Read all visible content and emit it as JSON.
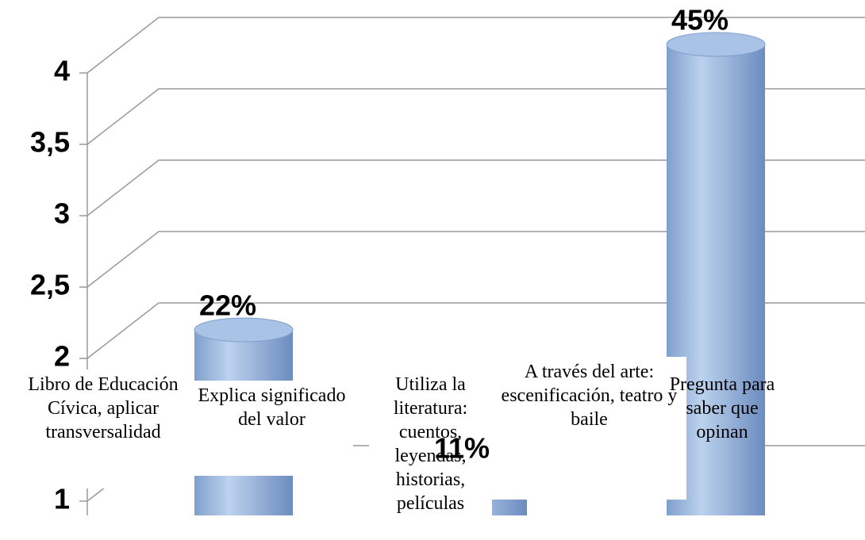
{
  "chart_data": {
    "type": "bar",
    "categories": [
      "Libro de Educación Cívica, aplicar transversalidad",
      "Explica significado del valor",
      "Utiliza la literatura: cuentos, leyendas, historias, películas",
      "A través del arte: escenificación, teatro y baile",
      "Pregunta para saber que opinan"
    ],
    "values": [
      null,
      2.2,
      1.2,
      null,
      4.2
    ],
    "value_labels": [
      null,
      "22%",
      "11%",
      null,
      "45%"
    ],
    "color": "#8eaedb",
    "ylim": [
      0.9,
      4.4
    ],
    "yticks": [
      1,
      2,
      {
        "value": 2.5,
        "label": "2,5"
      },
      3,
      {
        "value": 3.5,
        "label": "3,5"
      },
      4
    ],
    "grid": true
  }
}
